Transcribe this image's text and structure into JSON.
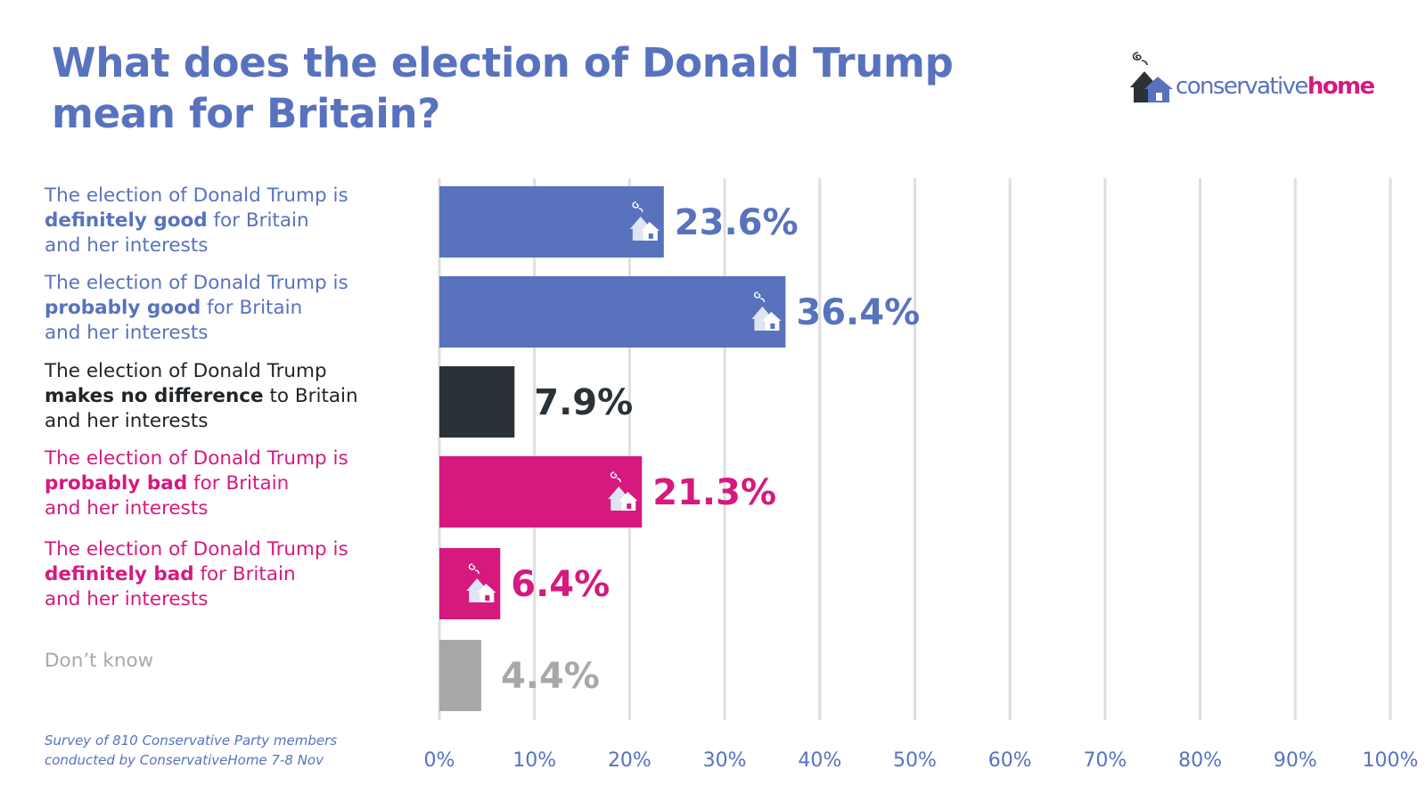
{
  "title_line1": "What does the election of Donald Trump",
  "title_line2": "mean for Britain?",
  "logo": {
    "part1": "conservative",
    "part2": "home",
    "icon": "house-smoke-icon"
  },
  "colors": {
    "blue": "#5872be",
    "dark": "#2a3238",
    "pink": "#d6197f",
    "grey": "#a8a8a8",
    "grid": "#dedede"
  },
  "labels": [
    {
      "line1": "The election of Donald Trump is",
      "bold": "definitely good",
      "rest": " for Britain",
      "line3": "and her interests"
    },
    {
      "line1": "The election of Donald Trump is",
      "bold": "probably good",
      "rest": " for Britain",
      "line3": "and her interests"
    },
    {
      "line1": "The election of Donald Trump",
      "bold": "makes no difference",
      "rest": " to Britain",
      "line3": "and her interests"
    },
    {
      "line1": "The election of Donald Trump is",
      "bold": "probably bad",
      "rest": " for Britain",
      "line3": "and her interests"
    },
    {
      "line1": "The election of Donald Trump is",
      "bold": "definitely bad",
      "rest": " for Britain",
      "line3": "and her interests"
    },
    {
      "line1": "Don’t know",
      "bold": "",
      "rest": "",
      "line3": ""
    }
  ],
  "footnote": {
    "line1": "Survey of 810 Conservative Party members",
    "line2": "conducted by ConservativeHome 7-8 Nov"
  },
  "chart_data": {
    "type": "bar",
    "orientation": "horizontal",
    "title": "What does the election of Donald Trump mean for Britain?",
    "categories": [
      "The election of Donald Trump is definitely good for Britain and her interests",
      "The election of Donald Trump is probably good for Britain and her interests",
      "The election of Donald Trump makes no difference to Britain and her interests",
      "The election of Donald Trump is probably bad for Britain and her interests",
      "The election of Donald Trump is definitely bad for Britain and her interests",
      "Don’t know"
    ],
    "values": [
      23.6,
      36.4,
      7.9,
      21.3,
      6.4,
      4.4
    ],
    "value_labels": [
      "23.6%",
      "36.4%",
      "7.9%",
      "21.3%",
      "6.4%",
      "4.4%"
    ],
    "bar_colors": [
      "#5872be",
      "#5872be",
      "#2a3238",
      "#d6197f",
      "#d6197f",
      "#a8a8a8"
    ],
    "house_icon_on_bar": [
      true,
      true,
      false,
      true,
      true,
      false
    ],
    "xlim": [
      0,
      100
    ],
    "xticks": [
      0,
      10,
      20,
      30,
      40,
      50,
      60,
      70,
      80,
      90,
      100
    ],
    "xtick_labels": [
      "0%",
      "10%",
      "20%",
      "30%",
      "40%",
      "50%",
      "60%",
      "70%",
      "80%",
      "90%",
      "100%"
    ],
    "grid": "vertical",
    "legend": "none",
    "xlabel": "",
    "ylabel": ""
  }
}
